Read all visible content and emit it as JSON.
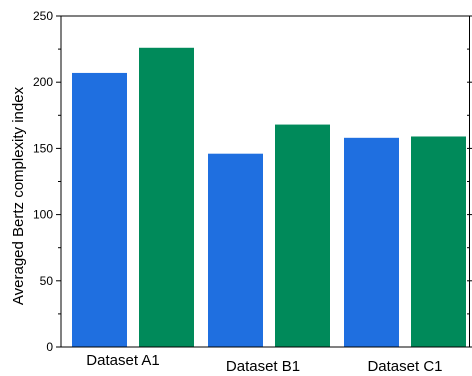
{
  "chart_data": {
    "type": "bar",
    "categories": [
      "Dataset A1",
      "Dataset B1",
      "Dataset C1"
    ],
    "series": [
      {
        "values": [
          207,
          146,
          158
        ],
        "color": "#1f6fe0"
      },
      {
        "values": [
          226,
          168,
          159
        ],
        "color": "#008a5a"
      }
    ],
    "ylabel": "Averaged Bertz complexity index",
    "ylim": [
      0,
      250
    ],
    "yticks": [
      0,
      50,
      100,
      150,
      200,
      250
    ],
    "grid": false,
    "legend": "none"
  }
}
